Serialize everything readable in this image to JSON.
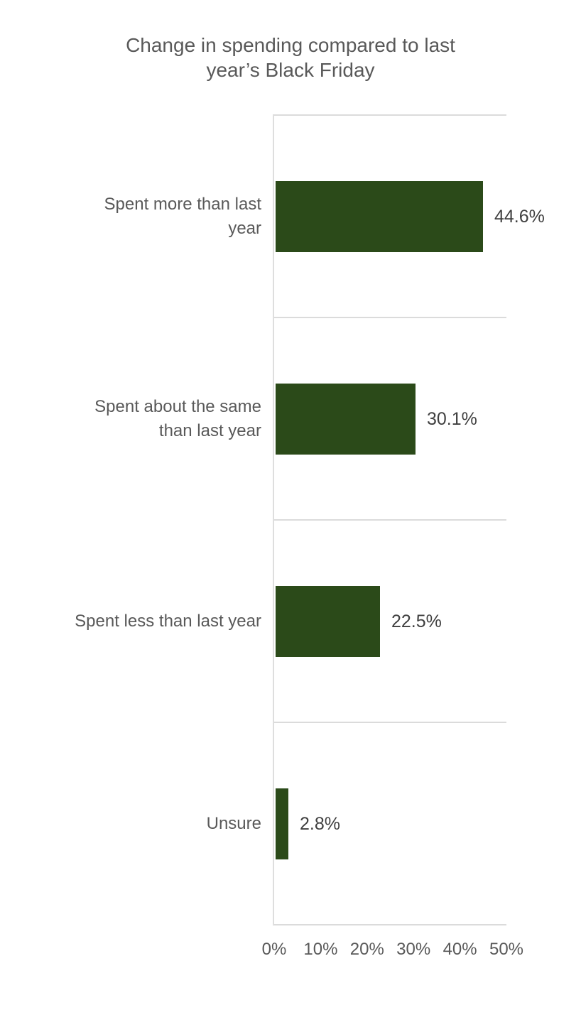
{
  "chart_data": {
    "type": "bar",
    "orientation": "horizontal",
    "title": "Change in spending compared to last year’s Black Friday",
    "title_lines": [
      "Change in spending compared to last",
      "year’s Black Friday"
    ],
    "categories": [
      {
        "label": "Spent more than last year",
        "label_lines": [
          "Spent more than last",
          "year"
        ],
        "value": 44.6,
        "value_label": "44.6%"
      },
      {
        "label": "Spent about the same than last year",
        "label_lines": [
          "Spent about the same",
          "than last year"
        ],
        "value": 30.1,
        "value_label": "30.1%"
      },
      {
        "label": "Spent less than last year",
        "label_lines": [
          "Spent less than last year"
        ],
        "value": 22.5,
        "value_label": "22.5%"
      },
      {
        "label": "Unsure",
        "label_lines": [
          "Unsure"
        ],
        "value": 2.8,
        "value_label": "2.8%"
      }
    ],
    "x_ticks": [
      "0%",
      "10%",
      "20%",
      "30%",
      "40%",
      "50%"
    ],
    "xlim": [
      0,
      50
    ],
    "xlabel": "",
    "ylabel": "",
    "legend": "none",
    "grid": "category-separator-lines",
    "colors": {
      "bar": "#2b4a19",
      "gridline": "#dbdbdb",
      "axis_line": "#dedede",
      "title_text": "#595959",
      "category_text": "#595959",
      "value_text": "#3f3f3f",
      "tick_text": "#595959",
      "background": "#ffffff"
    }
  }
}
